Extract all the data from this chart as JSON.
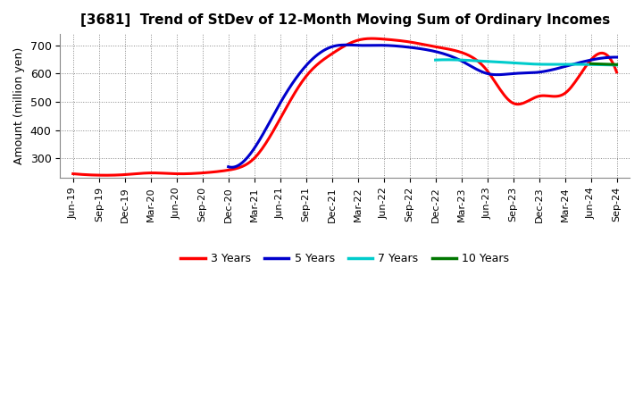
{
  "title": "[3681]  Trend of StDev of 12-Month Moving Sum of Ordinary Incomes",
  "ylabel": "Amount (million yen)",
  "ylim": [
    230,
    740
  ],
  "yticks": [
    300,
    400,
    500,
    600,
    700
  ],
  "x_labels": [
    "Jun-19",
    "Sep-19",
    "Dec-19",
    "Mar-20",
    "Jun-20",
    "Sep-20",
    "Dec-20",
    "Mar-21",
    "Jun-21",
    "Sep-21",
    "Dec-21",
    "Mar-22",
    "Jun-22",
    "Sep-22",
    "Dec-22",
    "Mar-23",
    "Jun-23",
    "Sep-23",
    "Dec-23",
    "Mar-24",
    "Jun-24",
    "Sep-24"
  ],
  "series": {
    "3 Years": {
      "color": "#FF0000",
      "values": [
        245,
        240,
        242,
        248,
        245,
        248,
        258,
        300,
        440,
        590,
        670,
        718,
        722,
        712,
        695,
        675,
        610,
        495,
        520,
        530,
        648,
        605
      ]
    },
    "5 Years": {
      "color": "#0000CC",
      "values": [
        null,
        null,
        null,
        null,
        null,
        null,
        270,
        335,
        495,
        628,
        695,
        700,
        700,
        693,
        678,
        645,
        600,
        600,
        605,
        625,
        648,
        658
      ]
    },
    "7 Years": {
      "color": "#00CCCC",
      "values": [
        null,
        null,
        null,
        null,
        null,
        null,
        null,
        null,
        null,
        null,
        null,
        null,
        null,
        null,
        648,
        648,
        643,
        638,
        633,
        633,
        632,
        630
      ]
    },
    "10 Years": {
      "color": "#007700",
      "values": [
        null,
        null,
        null,
        null,
        null,
        null,
        null,
        null,
        null,
        null,
        null,
        null,
        null,
        null,
        null,
        null,
        null,
        null,
        null,
        null,
        635,
        632
      ]
    }
  },
  "legend_order": [
    "3 Years",
    "5 Years",
    "7 Years",
    "10 Years"
  ],
  "grid_color": "#aaaaaa",
  "background_color": "#ffffff",
  "title_fontsize": 11,
  "linewidth": 2.2
}
